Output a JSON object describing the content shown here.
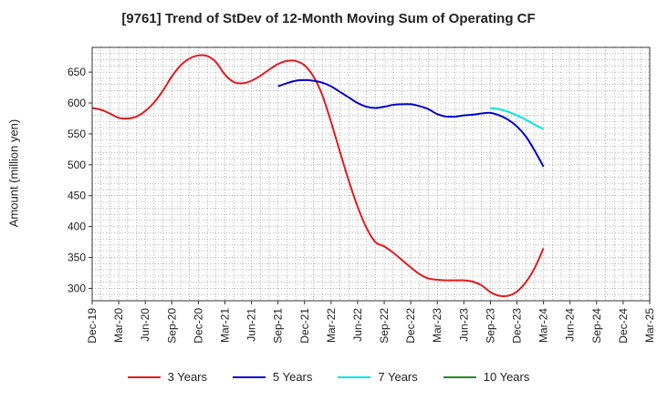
{
  "chart_data": {
    "type": "line",
    "title": "[9761]  Trend of StDev of 12-Month Moving Sum of Operating CF",
    "ylabel": "Amount (million yen)",
    "xlabel": "",
    "ylim": [
      280,
      690
    ],
    "yticks": [
      300,
      350,
      400,
      450,
      500,
      550,
      600,
      650
    ],
    "x_tick_labels": [
      "Dec-19",
      "Mar-20",
      "Jun-20",
      "Sep-20",
      "Dec-20",
      "Mar-21",
      "Jun-21",
      "Sep-21",
      "Dec-21",
      "Mar-22",
      "Jun-22",
      "Sep-22",
      "Dec-22",
      "Mar-23",
      "Jun-23",
      "Sep-23",
      "Dec-23",
      "Mar-24",
      "Jun-24",
      "Sep-24",
      "Dec-24",
      "Mar-25"
    ],
    "grid": true,
    "legend_position": "bottom",
    "series": [
      {
        "name": "3 Years",
        "color": "#e41a1c",
        "points": [
          [
            "Dec-19",
            592
          ],
          [
            "Jan-20",
            589
          ],
          [
            "Feb-20",
            583
          ],
          [
            "Mar-20",
            576
          ],
          [
            "Apr-20",
            575
          ],
          [
            "May-20",
            578
          ],
          [
            "Jun-20",
            587
          ],
          [
            "Jul-20",
            601
          ],
          [
            "Aug-20",
            620
          ],
          [
            "Sep-20",
            643
          ],
          [
            "Oct-20",
            661
          ],
          [
            "Nov-20",
            672
          ],
          [
            "Dec-20",
            677
          ],
          [
            "Jan-21",
            676
          ],
          [
            "Feb-21",
            666
          ],
          [
            "Mar-21",
            646
          ],
          [
            "Apr-21",
            634
          ],
          [
            "May-21",
            632
          ],
          [
            "Jun-21",
            636
          ],
          [
            "Jul-21",
            644
          ],
          [
            "Aug-21",
            654
          ],
          [
            "Sep-21",
            663
          ],
          [
            "Oct-21",
            668
          ],
          [
            "Nov-21",
            668
          ],
          [
            "Dec-21",
            661
          ],
          [
            "Jan-22",
            643
          ],
          [
            "Feb-22",
            613
          ],
          [
            "Mar-22",
            569
          ],
          [
            "Apr-22",
            521
          ],
          [
            "May-22",
            474
          ],
          [
            "Jun-22",
            432
          ],
          [
            "Jul-22",
            398
          ],
          [
            "Aug-22",
            375
          ],
          [
            "Sep-22",
            368
          ],
          [
            "Oct-22",
            358
          ],
          [
            "Nov-22",
            346
          ],
          [
            "Dec-22",
            334
          ],
          [
            "Jan-23",
            323
          ],
          [
            "Feb-23",
            316
          ],
          [
            "Mar-23",
            314
          ],
          [
            "Apr-23",
            313
          ],
          [
            "May-23",
            313
          ],
          [
            "Jun-23",
            313
          ],
          [
            "Jul-23",
            311
          ],
          [
            "Aug-23",
            305
          ],
          [
            "Sep-23",
            294
          ],
          [
            "Oct-23",
            288
          ],
          [
            "Nov-23",
            288
          ],
          [
            "Dec-23",
            295
          ],
          [
            "Jan-24",
            310
          ],
          [
            "Feb-24",
            333
          ],
          [
            "Mar-24",
            365
          ]
        ]
      },
      {
        "name": "5 Years",
        "color": "#0000cc",
        "points": [
          [
            "Sep-21",
            627
          ],
          [
            "Oct-21",
            632
          ],
          [
            "Nov-21",
            636
          ],
          [
            "Dec-21",
            637
          ],
          [
            "Jan-22",
            636
          ],
          [
            "Feb-22",
            633
          ],
          [
            "Mar-22",
            627
          ],
          [
            "Apr-22",
            618
          ],
          [
            "May-22",
            609
          ],
          [
            "Jun-22",
            600
          ],
          [
            "Jul-22",
            594
          ],
          [
            "Aug-22",
            592
          ],
          [
            "Sep-22",
            594
          ],
          [
            "Oct-22",
            597
          ],
          [
            "Nov-22",
            598
          ],
          [
            "Dec-22",
            598
          ],
          [
            "Jan-23",
            595
          ],
          [
            "Feb-23",
            590
          ],
          [
            "Mar-23",
            582
          ],
          [
            "Apr-23",
            578
          ],
          [
            "May-23",
            578
          ],
          [
            "Jun-23",
            580
          ],
          [
            "Jul-23",
            581
          ],
          [
            "Aug-23",
            583
          ],
          [
            "Sep-23",
            584
          ],
          [
            "Oct-23",
            580
          ],
          [
            "Nov-23",
            573
          ],
          [
            "Dec-23",
            562
          ],
          [
            "Jan-24",
            546
          ],
          [
            "Feb-24",
            523
          ],
          [
            "Mar-24",
            497
          ]
        ]
      },
      {
        "name": "7 Years",
        "color": "#00e5e5",
        "points": [
          [
            "Sep-23",
            592
          ],
          [
            "Oct-23",
            590
          ],
          [
            "Nov-23",
            586
          ],
          [
            "Dec-23",
            580
          ],
          [
            "Jan-24",
            573
          ],
          [
            "Feb-24",
            565
          ],
          [
            "Mar-24",
            558
          ]
        ]
      },
      {
        "name": "10 Years",
        "color": "#228b22",
        "points": []
      }
    ]
  }
}
